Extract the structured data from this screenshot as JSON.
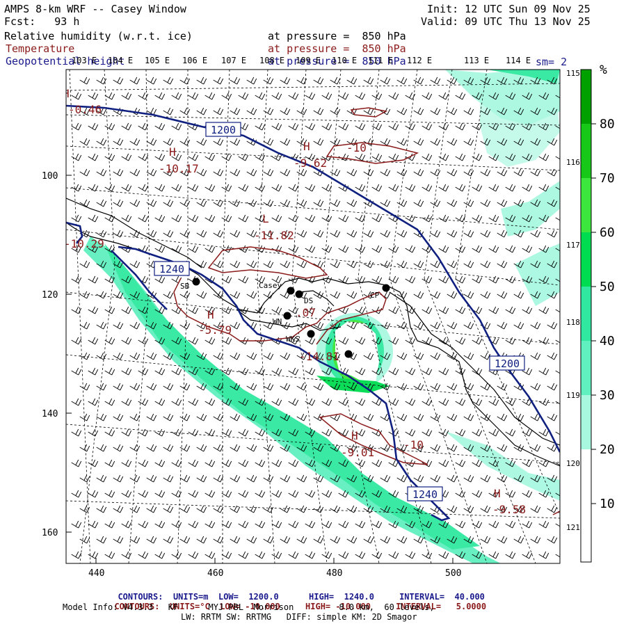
{
  "header": {
    "model_title": "AMPS 8-km WRF -- Casey Window",
    "fcst": "Fcst:   93 h",
    "init": "Init: 12 UTC Sun 09 Nov 25",
    "valid": "Valid: 09 UTC Thu 13 Nov 25",
    "field1_name": "Relative humidity (w.r.t. ice)",
    "field1_level": "at pressure =  850 hPa",
    "field2_name": "Temperature",
    "field2_level": "at pressure =  850 hPa",
    "field3_name": "Geopotential height",
    "field3_level": "at pressure =  850 hPa",
    "smoothing": "sm= 2"
  },
  "axes": {
    "x_ticks": [
      "440",
      "460",
      "480",
      "500"
    ],
    "y_ticks": [
      "100",
      "120",
      "140",
      "160"
    ],
    "lon_top": [
      "103 E",
      "104 E",
      "105 E",
      "106 E",
      "107 E",
      "108 E",
      "109 E",
      "110 E",
      "111 E",
      "112 E",
      "113 E",
      "114 E"
    ],
    "lon_right": [
      "115 E",
      "116 E",
      "117 E",
      "118 E",
      "119 E",
      "120 E",
      "121 E"
    ]
  },
  "colorbar": {
    "unit": "%",
    "labels": [
      "80",
      "70",
      "60",
      "50",
      "40",
      "30",
      "20",
      "10"
    ],
    "colors": [
      "#00a000",
      "#18c818",
      "#3ce63c",
      "#00dc50",
      "#30e8a0",
      "#60f0c0",
      "#a8f8e0",
      "#ffffff"
    ]
  },
  "height_labels": [
    "1200",
    "1240",
    "1200",
    "1240"
  ],
  "temp_labels": [
    {
      "type": "H",
      "value": "-0.46"
    },
    {
      "type": "H",
      "value": "-10.17"
    },
    {
      "type": "H",
      "value": "-9.62"
    },
    {
      "type": "",
      "value": "-10"
    },
    {
      "type": "L",
      "value": "-11.82"
    },
    {
      "type": "",
      "value": "-10.29"
    },
    {
      "type": "H",
      "value": "-5.79"
    },
    {
      "type": "",
      "value": ".07"
    },
    {
      "type": "",
      "value": "-14.81"
    },
    {
      "type": "H",
      "value": "-9.01"
    },
    {
      "type": "",
      "value": "-10"
    },
    {
      "type": "H",
      "value": "-9.58"
    }
  ],
  "stations": [
    "SB",
    "Casey",
    "DS",
    "WN",
    "WKS",
    "CP"
  ],
  "footer": {
    "c1_label": "CONTOURS:",
    "c1_units": "UNITS=m",
    "c1_low": "LOW=  1200.0",
    "c1_high": "HIGH=  1240.0",
    "c1_interval": "INTERVAL=  40.000",
    "c2_label": "CONTOURS:",
    "c2_units": "UNITS=°C",
    "c2_low": "LOW= -10.000",
    "c2_high": "HIGH= -10.000",
    "c2_interval": "INTERVAL=   5.0000",
    "model_info": "Model Info: V4.3.3   KF      MYJ PBL  Morrison         8.0 km,  60 levels,",
    "model_info2": "LW: RRTM SW: RRTMG   DIFF: simple KM: 2D Smagor"
  },
  "colors": {
    "height_contour": "#102080",
    "temp_contour": "#8b1a1a",
    "coast": "#000000"
  }
}
